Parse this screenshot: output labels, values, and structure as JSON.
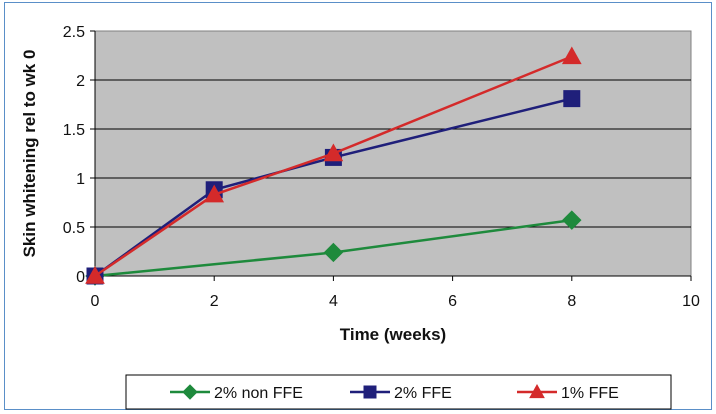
{
  "chart_data": {
    "type": "line",
    "x": [
      0,
      2,
      4,
      8
    ],
    "series": [
      {
        "name": "2% non FFE",
        "values": [
          0,
          0.12,
          0.24,
          0.57
        ],
        "color": "#1e8a3c",
        "marker": "diamond"
      },
      {
        "name": "2% FFE",
        "values": [
          0,
          0.88,
          1.21,
          1.81
        ],
        "color": "#1f1f7a",
        "marker": "square"
      },
      {
        "name": "1% FFE",
        "values": [
          0,
          0.83,
          1.25,
          2.24
        ],
        "color": "#d42a2a",
        "marker": "triangle"
      }
    ],
    "xlabel": "Time (weeks)",
    "ylabel": "Skin whitening rel to wk 0",
    "xlim": [
      0,
      10
    ],
    "ylim": [
      0,
      2.5
    ],
    "xticks": [
      "0",
      "2",
      "4",
      "6",
      "8",
      "10"
    ],
    "yticks": [
      "0",
      "0.5",
      "1",
      "1.5",
      "2",
      "2.5"
    ],
    "grid": "horizontal",
    "legend": "bottom",
    "plot_background": "#c0c0c0"
  }
}
